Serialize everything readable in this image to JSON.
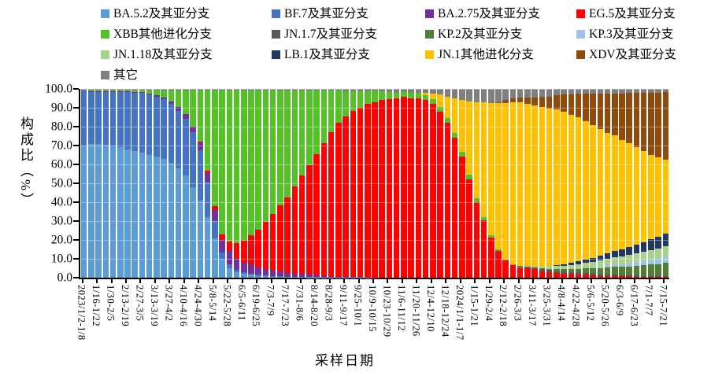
{
  "y_axis": {
    "title": "构成比（%）",
    "tick_labels": [
      "100.0",
      "90.0",
      "80.0",
      "70.0",
      "60.0",
      "50.0",
      "40.0",
      "30.0",
      "20.0",
      "10.0",
      "0.0"
    ],
    "min": 0,
    "max": 100,
    "step": 10
  },
  "x_axis": {
    "title": "采样日期",
    "label_every_n_bars": 2,
    "labels": [
      "2023/1/2-1/8",
      "1/16-1/22",
      "1/30-2/5",
      "2/13-2/19",
      "2/27-3/5",
      "3/13-3/19",
      "3/27-4/2",
      "4/10-4/16",
      "4/24-4/30",
      "5/8-5/14",
      "5/22-5/28",
      "6/5-6/11",
      "6/19-6/25",
      "7/3-7/9",
      "7/17-7/23",
      "7/31-8/6",
      "8/14-8/20",
      "8/28-9/3",
      "9/11-9/17",
      "9/25-10/1",
      "10/9-10/15",
      "10/23-10/29",
      "11/6-11/12",
      "11/20-11/26",
      "12/4-12/10",
      "12/18-12/24",
      "2024/1/1-1/7",
      "1/15-1/21",
      "1/29-2/4",
      "2/12-2/18",
      "2/26-3/3",
      "3/11-3/17",
      "3/25-3/31",
      "4/8-4/14",
      "4/22-4/28",
      "5/6-5/12",
      "5/20-5/26",
      "6/3-6/9",
      "6/17-6/23",
      "7/1-7/7",
      "7/15-7/21"
    ]
  },
  "legend": [
    {
      "label": "BA.5.2及其亚分支",
      "color": "#5B9BD5"
    },
    {
      "label": "BF.7及其亚分支",
      "color": "#4472C4"
    },
    {
      "label": "BA.2.75及其亚分支",
      "color": "#7030A0"
    },
    {
      "label": "EG.5及其亚分支",
      "color": "#FE0000"
    },
    {
      "label": "XBB其他进化分支",
      "color": "#54C226"
    },
    {
      "label": "JN.1.7及其亚分支",
      "color": "#595959"
    },
    {
      "label": "KP.2及其亚分支",
      "color": "#507E32"
    },
    {
      "label": "KP.3及其亚分支",
      "color": "#9DC3E6"
    },
    {
      "label": "JN.1.18及其亚分支",
      "color": "#A9D18E"
    },
    {
      "label": "LB.1及其亚分支",
      "color": "#1F3864"
    },
    {
      "label": "JN.1其他进化分支",
      "color": "#FFC000"
    },
    {
      "label": "XDV及其亚分支",
      "color": "#8F4B0E"
    },
    {
      "label": "其它",
      "color": "#7F7F7F"
    }
  ],
  "chart_data": {
    "type": "bar",
    "stacked": true,
    "normalized_to_100": true,
    "bars": 81,
    "note": "weekly sampling periods 2023/1/2 through 2024/7/15; x tick labels shown for every second bar",
    "ylim": [
      0,
      100
    ],
    "grid": true,
    "legend_position": "top",
    "series": [
      {
        "name": "BA.5.2及其亚分支",
        "color": "#5B9BD5",
        "values": [
          70,
          71,
          71,
          70.5,
          70,
          69,
          68,
          67,
          66,
          65,
          64,
          63,
          61,
          58,
          54,
          48,
          41,
          32,
          21,
          10,
          5,
          3,
          2,
          1.5,
          1,
          0.8,
          0.6,
          0.5,
          0.4,
          0.3,
          0.3,
          0.2,
          0.2,
          0.2,
          0.1,
          0.1,
          0.1,
          0.1,
          0.1,
          0.1,
          0,
          0,
          0,
          0,
          0,
          0,
          0,
          0,
          0,
          0,
          0,
          0,
          0,
          0,
          0,
          0,
          0,
          0,
          0,
          0,
          0,
          0,
          0,
          0,
          0,
          0,
          0,
          0,
          0,
          0,
          0,
          0,
          0,
          0,
          0,
          0,
          0,
          0,
          0,
          0,
          0
        ]
      },
      {
        "name": "BF.7及其亚分支",
        "color": "#4472C4",
        "values": [
          29,
          27.5,
          27.5,
          28,
          28.5,
          29.5,
          30.5,
          31,
          31.5,
          32,
          32,
          31.5,
          31,
          30.5,
          30,
          29,
          26.5,
          19,
          9,
          3.5,
          2,
          1.2,
          0.8,
          0.6,
          0.5,
          0.4,
          0.3,
          0.2,
          0.2,
          0.1,
          0.1,
          0.1,
          0.1,
          0,
          0,
          0,
          0,
          0,
          0,
          0,
          0,
          0,
          0,
          0,
          0,
          0,
          0,
          0,
          0,
          0,
          0,
          0,
          0,
          0,
          0,
          0,
          0,
          0,
          0,
          0,
          0,
          0,
          0,
          0,
          0,
          0,
          0,
          0,
          0,
          0,
          0,
          0,
          0,
          0,
          0,
          0,
          0,
          0,
          0,
          0,
          0
        ]
      },
      {
        "name": "BA.2.75及其亚分支",
        "color": "#7030A0",
        "values": [
          0.3,
          0.3,
          0.3,
          0.3,
          0.3,
          0.3,
          0.3,
          0.4,
          0.5,
          0.5,
          0.8,
          1,
          1.5,
          2,
          2.5,
          3,
          4,
          4.5,
          6,
          6.5,
          7,
          6,
          5,
          4.5,
          4,
          3.5,
          3,
          2.5,
          2,
          1.8,
          1.5,
          1.2,
          1,
          0.8,
          0.5,
          0.4,
          0.3,
          0.2,
          0.2,
          0.1,
          0.1,
          0,
          0,
          0,
          0,
          0,
          0,
          0,
          0,
          0,
          0,
          0,
          0,
          0,
          0,
          0,
          0,
          0,
          0,
          0,
          0,
          0,
          0,
          0,
          0,
          0,
          0,
          0,
          0,
          0,
          0,
          0,
          0,
          0,
          0,
          0,
          0,
          0,
          0,
          0,
          0
        ]
      },
      {
        "name": "EG.5及其亚分支",
        "color": "#FE0000",
        "values": [
          0,
          0,
          0,
          0,
          0,
          0,
          0,
          0,
          0,
          0,
          0,
          0,
          0,
          0,
          0,
          0.2,
          0.5,
          1,
          2,
          3,
          5,
          8,
          12,
          16,
          20,
          25,
          30,
          35,
          40,
          46,
          52,
          58,
          64,
          70,
          76,
          81,
          85,
          88,
          90,
          92,
          93,
          94,
          94.5,
          95,
          95.5,
          95,
          95,
          94,
          92,
          88,
          82,
          74,
          64,
          52,
          40,
          30,
          21,
          14,
          9,
          6.5,
          5.5,
          5,
          4.5,
          3.5,
          3,
          2.5,
          2.2,
          2,
          1.8,
          1.5,
          1.2,
          1,
          1,
          1,
          0.8,
          0.7,
          0.6,
          0.5,
          0.5,
          0.5,
          0.5
        ]
      },
      {
        "name": "XBB其他进化分支",
        "color": "#54C226",
        "values": [
          0,
          0.2,
          0.2,
          0.2,
          0.2,
          0.2,
          0.2,
          0.6,
          1,
          1.5,
          2.2,
          3.5,
          5.5,
          8.5,
          12.5,
          19,
          27,
          42.5,
          61,
          76,
          80,
          80.8,
          79.2,
          76.4,
          73.5,
          69.3,
          65.1,
          60.8,
          56.4,
          50.8,
          44.6,
          39,
          33.2,
          27.5,
          21.9,
          17,
          13.3,
          10.5,
          8.7,
          6.8,
          5.9,
          4.9,
          4,
          3,
          2.5,
          3,
          3,
          2.5,
          2.5,
          2.5,
          2.5,
          2.5,
          2.5,
          2.5,
          2,
          1.5,
          1.2,
          1,
          0.7,
          0.5,
          0.3,
          0.2,
          0,
          0,
          0,
          0,
          0,
          0,
          0,
          0,
          0,
          0,
          0,
          0,
          0,
          0,
          0,
          0,
          0,
          0,
          0
        ]
      },
      {
        "name": "JN.1.7及其亚分支",
        "color": "#595959",
        "values": [
          0,
          0,
          0,
          0,
          0,
          0,
          0,
          0,
          0,
          0,
          0,
          0,
          0,
          0,
          0,
          0,
          0,
          0,
          0,
          0,
          0,
          0,
          0,
          0,
          0,
          0,
          0,
          0,
          0,
          0,
          0,
          0,
          0,
          0,
          0,
          0,
          0,
          0,
          0,
          0,
          0,
          0,
          0,
          0,
          0,
          0,
          0,
          0,
          0,
          0,
          0,
          0,
          0,
          0,
          0,
          0,
          0,
          0,
          0,
          0.3,
          0.5,
          0.8,
          1,
          1,
          1,
          1,
          1,
          1,
          1,
          1,
          1,
          0.8,
          0.8,
          0.7,
          0.6,
          0.6,
          0.5,
          0.5,
          0.5,
          0.5,
          0.5
        ]
      },
      {
        "name": "KP.2及其亚分支",
        "color": "#507E32",
        "values": [
          0,
          0,
          0,
          0,
          0,
          0,
          0,
          0,
          0,
          0,
          0,
          0,
          0,
          0,
          0,
          0,
          0,
          0,
          0,
          0,
          0,
          0,
          0,
          0,
          0,
          0,
          0,
          0,
          0,
          0,
          0,
          0,
          0,
          0,
          0,
          0,
          0,
          0,
          0,
          0,
          0,
          0,
          0,
          0,
          0,
          0,
          0,
          0,
          0,
          0,
          0,
          0,
          0,
          0,
          0,
          0,
          0,
          0,
          0,
          0,
          0,
          0,
          0,
          0.5,
          0.8,
          1,
          1.3,
          1.7,
          2,
          2.4,
          2.8,
          3.2,
          3.5,
          3.9,
          4.3,
          4.6,
          5,
          5.4,
          5.8,
          6.1,
          6.5
        ]
      },
      {
        "name": "KP.3及其亚分支",
        "color": "#9DC3E6",
        "values": [
          0,
          0,
          0,
          0,
          0,
          0,
          0,
          0,
          0,
          0,
          0,
          0,
          0,
          0,
          0,
          0,
          0,
          0,
          0,
          0,
          0,
          0,
          0,
          0,
          0,
          0,
          0,
          0,
          0,
          0,
          0,
          0,
          0,
          0,
          0,
          0,
          0,
          0,
          0,
          0,
          0,
          0,
          0,
          0,
          0,
          0,
          0,
          0,
          0,
          0,
          0,
          0,
          0,
          0,
          0,
          0,
          0,
          0,
          0,
          0,
          0,
          0,
          0,
          0,
          0,
          0,
          0,
          0,
          0,
          0.3,
          0.5,
          0.8,
          1,
          1.2,
          1.4,
          1.6,
          1.9,
          2.1,
          2.4,
          2.7,
          3
        ]
      },
      {
        "name": "JN.1.18及其亚分支",
        "color": "#A9D18E",
        "values": [
          0,
          0,
          0,
          0,
          0,
          0,
          0,
          0,
          0,
          0,
          0,
          0,
          0,
          0,
          0,
          0,
          0,
          0,
          0,
          0,
          0,
          0,
          0,
          0,
          0,
          0,
          0,
          0,
          0,
          0,
          0,
          0,
          0,
          0,
          0,
          0,
          0,
          0,
          0,
          0,
          0,
          0,
          0,
          0,
          0,
          0,
          0,
          0,
          0,
          0,
          0,
          0,
          0,
          0,
          0,
          0,
          0,
          0,
          0,
          0,
          0,
          0.3,
          0.6,
          1,
          1.3,
          1.6,
          1.9,
          2.2,
          2.5,
          2.8,
          3,
          3.3,
          3.6,
          3.9,
          4.2,
          4.5,
          4.7,
          5,
          5.2,
          5.4,
          5.5
        ]
      },
      {
        "name": "LB.1及其亚分支",
        "color": "#1F3864",
        "values": [
          0,
          0,
          0,
          0,
          0,
          0,
          0,
          0,
          0,
          0,
          0,
          0,
          0,
          0,
          0,
          0,
          0,
          0,
          0,
          0,
          0,
          0,
          0,
          0,
          0,
          0,
          0,
          0,
          0,
          0,
          0,
          0,
          0,
          0,
          0,
          0,
          0,
          0,
          0,
          0,
          0,
          0,
          0,
          0,
          0,
          0,
          0,
          0,
          0,
          0,
          0,
          0,
          0,
          0,
          0,
          0,
          0,
          0,
          0,
          0,
          0,
          0,
          0,
          0,
          0,
          0.4,
          0.7,
          1,
          1.3,
          1.6,
          2,
          2.4,
          2.8,
          3.2,
          3.6,
          4,
          4.5,
          5,
          5.5,
          6,
          6.5
        ]
      },
      {
        "name": "JN.1其他进化分支",
        "color": "#FFC000",
        "values": [
          0,
          0,
          0,
          0,
          0,
          0,
          0,
          0,
          0,
          0,
          0,
          0,
          0,
          0,
          0,
          0,
          0,
          0,
          0,
          0,
          0,
          0,
          0,
          0,
          0,
          0,
          0,
          0,
          0,
          0,
          0,
          0,
          0,
          0,
          0,
          0,
          0,
          0,
          0,
          0,
          0,
          0,
          0,
          0,
          0,
          0,
          0,
          1.5,
          3,
          6.5,
          11.5,
          18.5,
          27.5,
          39,
          51,
          60,
          69.5,
          77.5,
          83,
          86,
          87.5,
          87.2,
          86.4,
          85,
          84,
          82.5,
          81,
          79,
          76.4,
          73.4,
          70,
          66.5,
          63.4,
          60.6,
          57.1,
          54,
          50.3,
          47,
          43.6,
          40.8,
          38
        ]
      },
      {
        "name": "XDV及其亚分支",
        "color": "#8F4B0E",
        "values": [
          0,
          0,
          0,
          0,
          0,
          0,
          0,
          0,
          0,
          0,
          0,
          0,
          0,
          0,
          0,
          0,
          0,
          0,
          0,
          0,
          0,
          0,
          0,
          0,
          0,
          0,
          0,
          0,
          0,
          0,
          0,
          0,
          0,
          0,
          0,
          0,
          0,
          0,
          0,
          0,
          0,
          0,
          0,
          0,
          0,
          0,
          0,
          0,
          0,
          0,
          0,
          0,
          0,
          0,
          0,
          0,
          0,
          0.5,
          1.3,
          2,
          2.7,
          3.5,
          4.5,
          5.3,
          6.4,
          7.5,
          8.9,
          10.6,
          12.5,
          14.5,
          16.5,
          18.5,
          20.4,
          22,
          24,
          26,
          28,
          30,
          32,
          33.5,
          35
        ]
      },
      {
        "name": "其它",
        "color": "#7F7F7F",
        "values": [
          0.7,
          1,
          1,
          1,
          1,
          1,
          1,
          1,
          0.6,
          1,
          1,
          1,
          1,
          1,
          1,
          0.8,
          1,
          1,
          1,
          1,
          1,
          1,
          1,
          1,
          1,
          1,
          1,
          1,
          1,
          1,
          1,
          1,
          1,
          1,
          1,
          1,
          1.3,
          1.2,
          1.2,
          1.1,
          1,
          1.1,
          1.5,
          2,
          1.5,
          2,
          2,
          2,
          2.5,
          3,
          4,
          5,
          6,
          6.5,
          7,
          7,
          7.3,
          7,
          6,
          5.2,
          4.5,
          4.5,
          4.5,
          4.2,
          4,
          3.5,
          3,
          3,
          2.5,
          2.4,
          2.5,
          2.5,
          2.5,
          2.5,
          2.5,
          2,
          2,
          2,
          2,
          2,
          1.5
        ]
      }
    ]
  }
}
